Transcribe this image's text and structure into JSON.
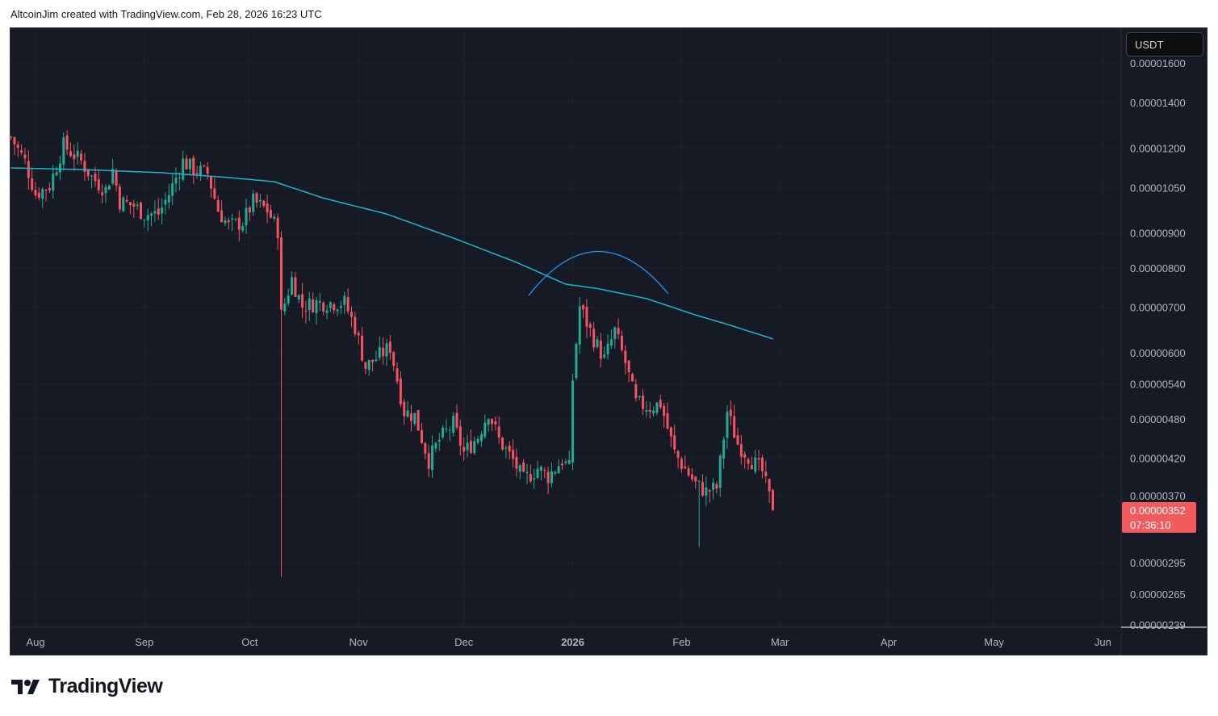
{
  "header": {
    "text": "AltcoinJim created with TradingView.com, Feb 28, 2026 16:23 UTC"
  },
  "currency_button": "USDT",
  "logo_text": "TradingView",
  "colors": {
    "up": "#22ab94",
    "down": "#f7525f",
    "ma": "#1fb5c9",
    "arc": "#2196f3",
    "bg": "#161a25",
    "last_price_bg": "#f15b5b"
  },
  "chart_data": {
    "type": "candlestick",
    "scale": "log",
    "price_unit_note": "prices in units of 1e-8 USDT",
    "x_unit": "days since Aug 1, 2025",
    "price_ticks": [
      "0.00001600",
      "0.00001400",
      "0.00001200",
      "0.00001050",
      "0.00000900",
      "0.00000800",
      "0.00000700",
      "0.00000600",
      "0.00000540",
      "0.00000480",
      "0.00000420",
      "0.00000370",
      "0.00000295",
      "0.00000265",
      "0.00000239"
    ],
    "time_ticks": [
      {
        "label": "Aug",
        "day": 0,
        "bold": false
      },
      {
        "label": "Sep",
        "day": 31,
        "bold": false
      },
      {
        "label": "Oct",
        "day": 61,
        "bold": false
      },
      {
        "label": "Nov",
        "day": 92,
        "bold": false
      },
      {
        "label": "Dec",
        "day": 122,
        "bold": false
      },
      {
        "label": "2026",
        "day": 153,
        "bold": true
      },
      {
        "label": "Feb",
        "day": 184,
        "bold": false
      },
      {
        "label": "Mar",
        "day": 212,
        "bold": false
      },
      {
        "label": "Apr",
        "day": 243,
        "bold": false
      },
      {
        "label": "May",
        "day": 273,
        "bold": false
      },
      {
        "label": "Jun",
        "day": 304,
        "bold": false
      }
    ],
    "close_path": [
      [
        -7,
        1245
      ],
      [
        -3,
        1147
      ],
      [
        0,
        1027
      ],
      [
        4,
        1057
      ],
      [
        8,
        1211
      ],
      [
        13,
        1147
      ],
      [
        16,
        1087
      ],
      [
        20,
        1042
      ],
      [
        22,
        1116
      ],
      [
        24,
        1001
      ],
      [
        28,
        987
      ],
      [
        31,
        960
      ],
      [
        35,
        960
      ],
      [
        38,
        1027
      ],
      [
        42,
        1147
      ],
      [
        45,
        1116
      ],
      [
        49,
        1101
      ],
      [
        52,
        973
      ],
      [
        55,
        921
      ],
      [
        59,
        934
      ],
      [
        62,
        1001
      ],
      [
        66,
        973
      ],
      [
        69,
        909
      ],
      [
        70,
        682
      ],
      [
        73,
        771
      ],
      [
        76,
        702
      ],
      [
        80,
        711
      ],
      [
        84,
        711
      ],
      [
        88,
        711
      ],
      [
        91,
        655
      ],
      [
        94,
        572
      ],
      [
        98,
        595
      ],
      [
        101,
        612
      ],
      [
        105,
        492
      ],
      [
        108,
        485
      ],
      [
        112,
        417
      ],
      [
        115,
        447
      ],
      [
        119,
        472
      ],
      [
        122,
        428
      ],
      [
        126,
        452
      ],
      [
        129,
        492
      ],
      [
        132,
        447
      ],
      [
        136,
        417
      ],
      [
        139,
        390
      ],
      [
        143,
        406
      ],
      [
        146,
        395
      ],
      [
        150,
        417
      ],
      [
        152,
        406
      ],
      [
        153,
        549
      ],
      [
        155,
        702
      ],
      [
        159,
        629
      ],
      [
        162,
        587
      ],
      [
        165,
        646
      ],
      [
        168,
        580
      ],
      [
        171,
        506
      ],
      [
        175,
        499
      ],
      [
        178,
        506
      ],
      [
        182,
        428
      ],
      [
        184,
        412
      ],
      [
        188,
        385
      ],
      [
        191,
        375
      ],
      [
        194,
        380
      ],
      [
        197,
        492
      ],
      [
        200,
        441
      ],
      [
        204,
        417
      ],
      [
        207,
        401
      ],
      [
        210,
        352
      ]
    ],
    "special_wicks": [
      {
        "day": 70,
        "low": 281
      },
      {
        "day": 189,
        "low": 311
      }
    ],
    "moving_average": [
      [
        -7,
        1122
      ],
      [
        13,
        1116
      ],
      [
        36,
        1104
      ],
      [
        54,
        1087
      ],
      [
        68,
        1071
      ],
      [
        82,
        1013
      ],
      [
        100,
        960
      ],
      [
        119,
        885
      ],
      [
        137,
        815
      ],
      [
        151,
        757
      ],
      [
        160,
        746
      ],
      [
        174,
        721
      ],
      [
        188,
        682
      ],
      [
        197,
        661
      ],
      [
        210,
        629
      ]
    ],
    "last_price": {
      "price": "0.00000352",
      "countdown": "07:36:10"
    }
  }
}
